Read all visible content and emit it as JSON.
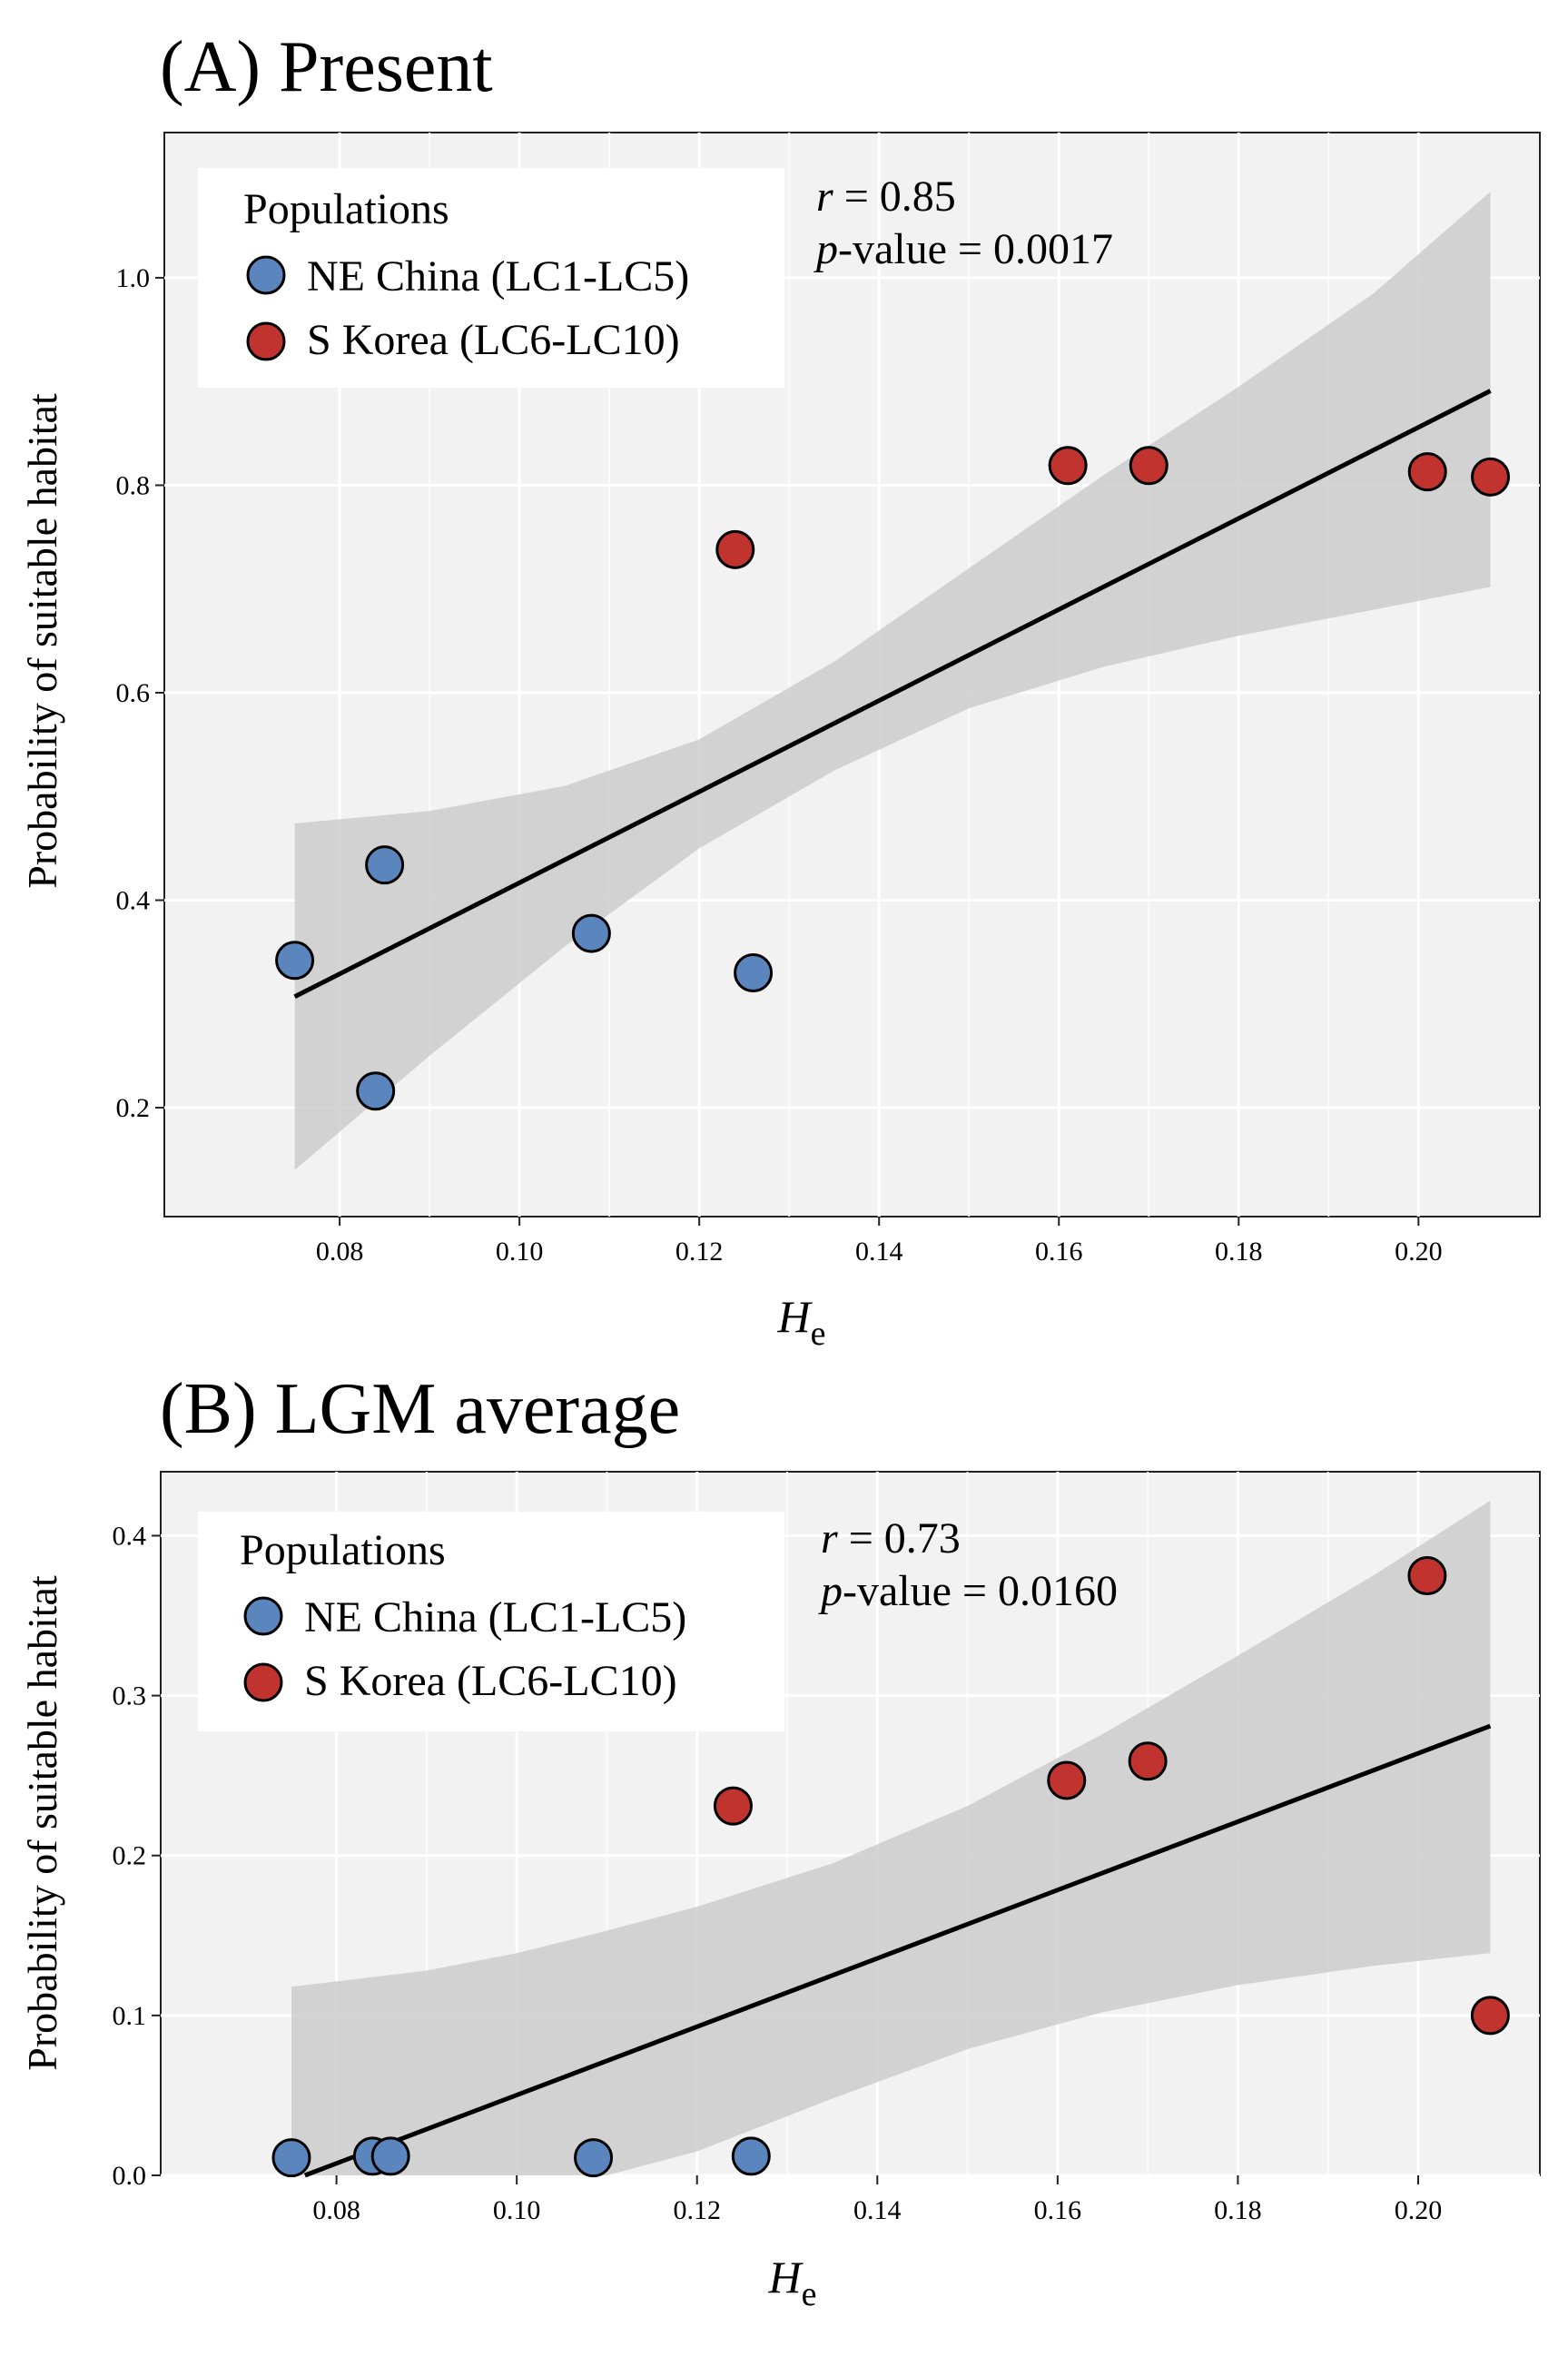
{
  "chart_data": [
    {
      "type": "scatter",
      "title": "(A) Present",
      "xlabel_main": "H",
      "xlabel_sub": "e",
      "ylabel": "Probability of suitable habitat",
      "xlim": [
        0.0605,
        0.2135
      ],
      "ylim": [
        0.095,
        1.14
      ],
      "xticks": [
        0.08,
        0.1,
        0.12,
        0.14,
        0.16,
        0.18,
        0.2
      ],
      "xtick_labels": [
        "0.08",
        "0.10",
        "0.12",
        "0.14",
        "0.16",
        "0.18",
        "0.20"
      ],
      "yticks": [
        0.2,
        0.4,
        0.6,
        0.8,
        1.0
      ],
      "ytick_labels": [
        "0.2",
        "0.4",
        "0.6",
        "0.8",
        "1.0"
      ],
      "legend": {
        "title": "Populations",
        "position": "top-left",
        "items": [
          {
            "label": "NE China (LC1-LC5)",
            "color": "#5b86bd"
          },
          {
            "label": "S Korea (LC6-LC10)",
            "color": "#c0332f"
          }
        ]
      },
      "stats": {
        "r_symbol": "r",
        "r_text": " = 0.85",
        "p_symbol": "p",
        "p_text": "-value = 0.0017"
      },
      "series": [
        {
          "name": "NE China (LC1-LC5)",
          "color": "#5b86bd",
          "points": [
            [
              0.075,
              0.342
            ],
            [
              0.084,
              0.216
            ],
            [
              0.085,
              0.434
            ],
            [
              0.108,
              0.368
            ],
            [
              0.126,
              0.33
            ]
          ]
        },
        {
          "name": "S Korea (LC6-LC10)",
          "color": "#c0332f",
          "points": [
            [
              0.124,
              0.738
            ],
            [
              0.161,
              0.819
            ],
            [
              0.17,
              0.819
            ],
            [
              0.201,
              0.813
            ],
            [
              0.208,
              0.808
            ]
          ]
        }
      ],
      "fit_line": [
        [
          0.075,
          0.307
        ],
        [
          0.208,
          0.891
        ]
      ],
      "confidence_band": {
        "x": [
          0.075,
          0.09,
          0.105,
          0.12,
          0.135,
          0.15,
          0.165,
          0.18,
          0.195,
          0.208
        ],
        "upper": [
          0.474,
          0.486,
          0.51,
          0.555,
          0.63,
          0.72,
          0.81,
          0.895,
          0.985,
          1.083
        ],
        "lower": [
          0.14,
          0.25,
          0.355,
          0.45,
          0.525,
          0.585,
          0.625,
          0.655,
          0.68,
          0.702
        ]
      },
      "colors": {
        "panel_bg": "#f2f2f2",
        "grid": "#ffffff",
        "band": "#cccccc",
        "line": "#000000"
      }
    },
    {
      "type": "scatter",
      "title": "(B) LGM average",
      "xlabel_main": "H",
      "xlabel_sub": "e",
      "ylabel": "Probability of suitable habitat",
      "xlim": [
        0.0605,
        0.2135
      ],
      "ylim": [
        0.0,
        0.44
      ],
      "xticks": [
        0.08,
        0.1,
        0.12,
        0.14,
        0.16,
        0.18,
        0.2
      ],
      "xtick_labels": [
        "0.08",
        "0.10",
        "0.12",
        "0.14",
        "0.16",
        "0.18",
        "0.20"
      ],
      "yticks": [
        0.0,
        0.1,
        0.2,
        0.3,
        0.4
      ],
      "ytick_labels": [
        "0.0",
        "0.1",
        "0.2",
        "0.3",
        "0.4"
      ],
      "legend": {
        "title": "Populations",
        "position": "top-left",
        "items": [
          {
            "label": "NE China (LC1-LC5)",
            "color": "#5b86bd"
          },
          {
            "label": "S Korea (LC6-LC10)",
            "color": "#c0332f"
          }
        ]
      },
      "stats": {
        "r_symbol": "r",
        "r_text": " = 0.73",
        "p_symbol": "p",
        "p_text": "-value = 0.0160"
      },
      "series": [
        {
          "name": "NE China (LC1-LC5)",
          "color": "#5b86bd",
          "points": [
            [
              0.075,
              0.011
            ],
            [
              0.084,
              0.012
            ],
            [
              0.086,
              0.012
            ],
            [
              0.1085,
              0.011
            ],
            [
              0.126,
              0.012
            ]
          ]
        },
        {
          "name": "S Korea (LC6-LC10)",
          "color": "#c0332f",
          "points": [
            [
              0.124,
              0.231
            ],
            [
              0.161,
              0.247
            ],
            [
              0.17,
              0.259
            ],
            [
              0.201,
              0.375
            ],
            [
              0.208,
              0.1
            ]
          ]
        }
      ],
      "fit_line": [
        [
          0.0765,
          0.0
        ],
        [
          0.208,
          0.281
        ]
      ],
      "confidence_band": {
        "x": [
          0.075,
          0.09,
          0.1,
          0.11,
          0.12,
          0.135,
          0.15,
          0.165,
          0.18,
          0.195,
          0.208
        ],
        "upper": [
          0.118,
          0.128,
          0.139,
          0.153,
          0.168,
          0.195,
          0.231,
          0.276,
          0.325,
          0.375,
          0.422
        ],
        "lower": [
          0.0,
          0.0,
          0.0,
          0.0,
          0.015,
          0.048,
          0.079,
          0.102,
          0.119,
          0.131,
          0.139
        ]
      },
      "colors": {
        "panel_bg": "#f2f2f2",
        "grid": "#ffffff",
        "band": "#cccccc",
        "line": "#000000"
      }
    }
  ]
}
